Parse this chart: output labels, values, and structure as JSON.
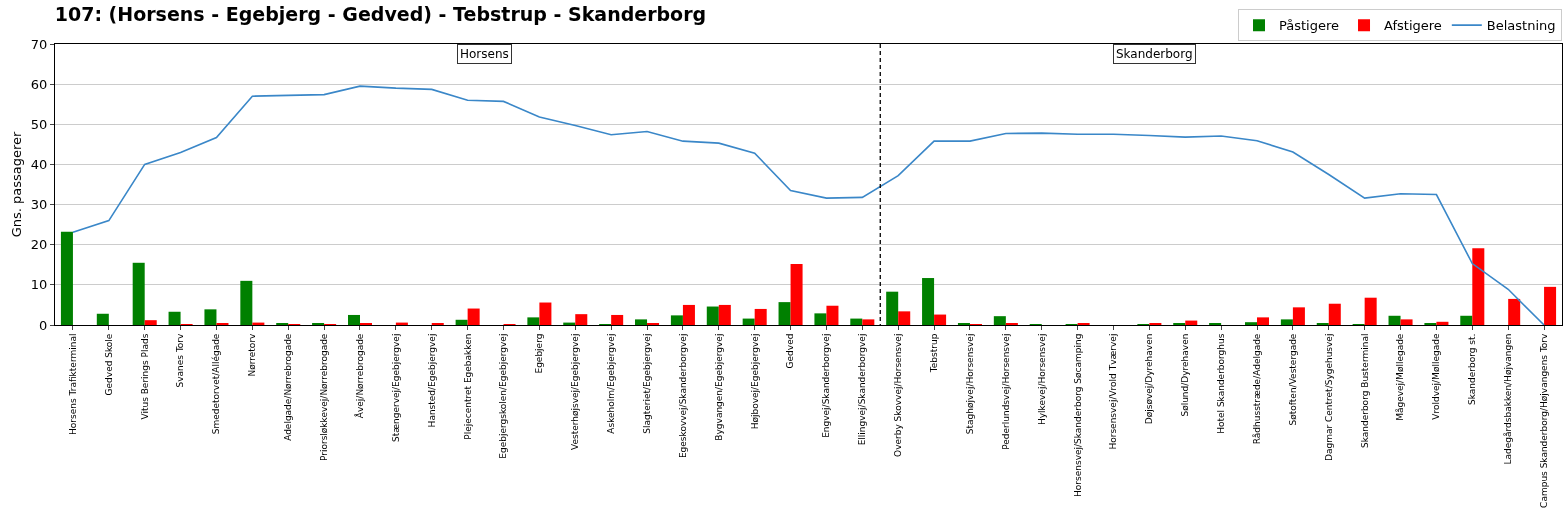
{
  "chart_data": {
    "type": "bar",
    "title": "107: (Horsens - Egebjerg - Gedved) - Tebstrup - Skanderborg",
    "ylabel": "Gns. passagerer",
    "categories": [
      "Horsens Trafikterminal",
      "Gedved Skole",
      "Vitus Berings Plads",
      "Svanes Torv",
      "Smedetorvet/Allégade",
      "Nørretorv",
      "Adelgade/Nørrebrogade",
      "Priorsløkkevej/Nørrebrogade",
      "Åvej/Nørrebrogade",
      "Stængervej/Egebjergvej",
      "Hansted/Egebjergvej",
      "Plejecentret Egebakken",
      "Egebjergskolen/Egebjergvej",
      "Egebjerg",
      "Vesterhøjsvej/Egebjergvej",
      "Askeholm/Egebjergvej",
      "Slagteriet/Egebjergvej",
      "Egeskovvej/Skanderborgvej",
      "Bygvangen/Egebjergvej",
      "Højbovej/Egebjergvej",
      "Gedved",
      "Engvej/Skanderborgvej",
      "Ellingvej/Skanderborgvej",
      "Overby Skovvej/Horsensvej",
      "Tebstrup",
      "Staghøjvej/Horsensvej",
      "Pederlundsvej/Horsensvej",
      "Hylkevej/Horsensvej",
      "Horsensvej/Skanderborg Søcamping",
      "Horsensvej/Vrold Tværvej",
      "Døjsøvej/Dyrehaven",
      "Sølund/Dyrehaven",
      "Hotel Skanderborghus",
      "Rådhusstræde/Adelgade",
      "Søtoften/Vestergade",
      "Dagmar Centret/Sygehusvej",
      "Skanderborg Busterminal",
      "Mågevej/Møllegade",
      "Vroldvej/Møllegade",
      "Skanderborg st.",
      "Ladegårdsbakken/Højvangen",
      "Campus Skanderborg/Højvangens Torv"
    ],
    "series": [
      {
        "name": "Påstigere",
        "color": "#008000",
        "values": [
          23.2,
          2.8,
          15.5,
          3.3,
          3.9,
          11,
          0.3,
          0.3,
          2.5,
          0,
          0,
          1.3,
          0,
          1.9,
          0.6,
          0.2,
          1.4,
          2.4,
          4.6,
          1.6,
          5.7,
          2.9,
          1.6,
          8.3,
          11.7,
          0.4,
          2.2,
          0.1,
          0.2,
          0,
          0.1,
          0.5,
          0.3,
          0.7,
          1.4,
          0.4,
          0.1,
          2.3,
          0.5,
          2.3,
          0,
          0
        ]
      },
      {
        "name": "Afstigere",
        "color": "#ff0000",
        "values": [
          0,
          0,
          1.2,
          0.2,
          0.5,
          0.6,
          0.2,
          0.2,
          0.3,
          0.6,
          0.3,
          4.1,
          0.2,
          5.6,
          2.7,
          2.5,
          0.3,
          5.0,
          5.0,
          4.0,
          15.2,
          4.8,
          1.4,
          3.4,
          2.6,
          0.2,
          0.3,
          0,
          0.3,
          0,
          0.3,
          1.1,
          0,
          1.9,
          4.4,
          5.3,
          6.8,
          1.4,
          0.8,
          19.1,
          6.5,
          9.5
        ]
      },
      {
        "name": "Belastning",
        "type": "line",
        "color": "#3a87c8",
        "values": [
          23.1,
          26,
          40,
          43,
          46.7,
          57,
          57.2,
          57.4,
          59.5,
          59,
          58.7,
          56,
          55.7,
          51.8,
          49.7,
          47.4,
          48.2,
          45.8,
          45.3,
          42.8,
          33.5,
          31.6,
          31.8,
          37.2,
          45.8,
          45.8,
          47.7,
          47.8,
          47.5,
          47.5,
          47.2,
          46.8,
          47.1,
          45.9,
          43.1,
          37.5,
          31.6,
          32.7,
          32.5,
          15.3,
          8.9,
          0
        ]
      }
    ],
    "ylim": [
      0,
      70
    ],
    "yticks": [
      0,
      10,
      20,
      30,
      40,
      50,
      60,
      70
    ],
    "grid": "y",
    "legend": "top right",
    "annotations": [
      "Horsens",
      "Skanderborg"
    ]
  }
}
